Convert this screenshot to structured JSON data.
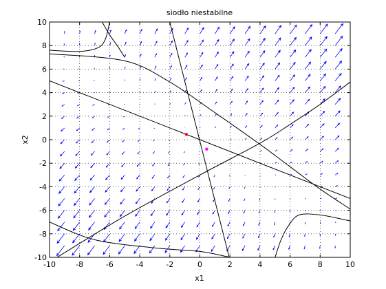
{
  "chart_data": {
    "type": "quiver",
    "title": "siodło niestabilne",
    "xlabel": "x1",
    "ylabel": "x2",
    "xlim": [
      -10,
      10
    ],
    "ylim": [
      -10,
      10
    ],
    "x_ticks": [
      -10,
      -8,
      -6,
      -4,
      -2,
      0,
      2,
      4,
      6,
      8,
      10
    ],
    "y_ticks": [
      -10,
      -8,
      -6,
      -4,
      -2,
      0,
      2,
      4,
      6,
      8,
      10
    ],
    "grid": true,
    "grid_style": "dotted",
    "vector_field": {
      "x_range": [
        -9,
        9
      ],
      "y_range": [
        -9,
        9
      ],
      "step": 1,
      "color": "#0000ff",
      "field_matrix": [
        [
          1,
          1
        ],
        [
          1,
          1.6
        ]
      ]
    },
    "separatrices": [
      {
        "x": [
          1.95,
          -2.0
        ],
        "y": [
          -10,
          10
        ]
      },
      {
        "x": [
          -10,
          10
        ],
        "y": [
          5.0,
          -5.0
        ]
      }
    ],
    "trajectories": [
      {
        "x": [
          -10,
          -5,
          -2,
          1,
          4,
          6,
          8,
          10
        ],
        "y": [
          7.3,
          6.7,
          4.9,
          2.3,
          -0.4,
          -2.3,
          -4.2,
          -5.9
        ]
      },
      {
        "x": [
          -9.5,
          -5,
          0,
          4,
          6,
          8,
          10
        ],
        "y": [
          -10.0,
          -6.5,
          -3.0,
          -0.3,
          1.3,
          3.0,
          4.9
        ]
      },
      {
        "x": [
          -6.0,
          -6.3,
          -6.8,
          -8,
          -10
        ],
        "y": [
          10.0,
          8.5,
          7.8,
          7.5,
          7.6
        ]
      },
      {
        "x": [
          -6.5,
          -6.0,
          -5.5,
          -5.0
        ],
        "y": [
          10.0,
          8.9,
          8.0,
          7.0
        ]
      },
      {
        "x": [
          5.0,
          5.4,
          5.9,
          6.6,
          8,
          10
        ],
        "y": [
          -10.0,
          -8.5,
          -7.3,
          -6.4,
          -6.4,
          -6.9
        ]
      },
      {
        "x": [
          -10,
          -7,
          -3,
          0,
          2
        ],
        "y": [
          -7.0,
          -8.5,
          -9.2,
          -9.5,
          -10.0
        ]
      }
    ],
    "points": [
      {
        "x": -0.9,
        "y": 0.45,
        "color": "#ff0000"
      },
      {
        "x": 0.45,
        "y": -0.8,
        "color": "#ff00ff"
      }
    ],
    "line_color": "#000000"
  }
}
